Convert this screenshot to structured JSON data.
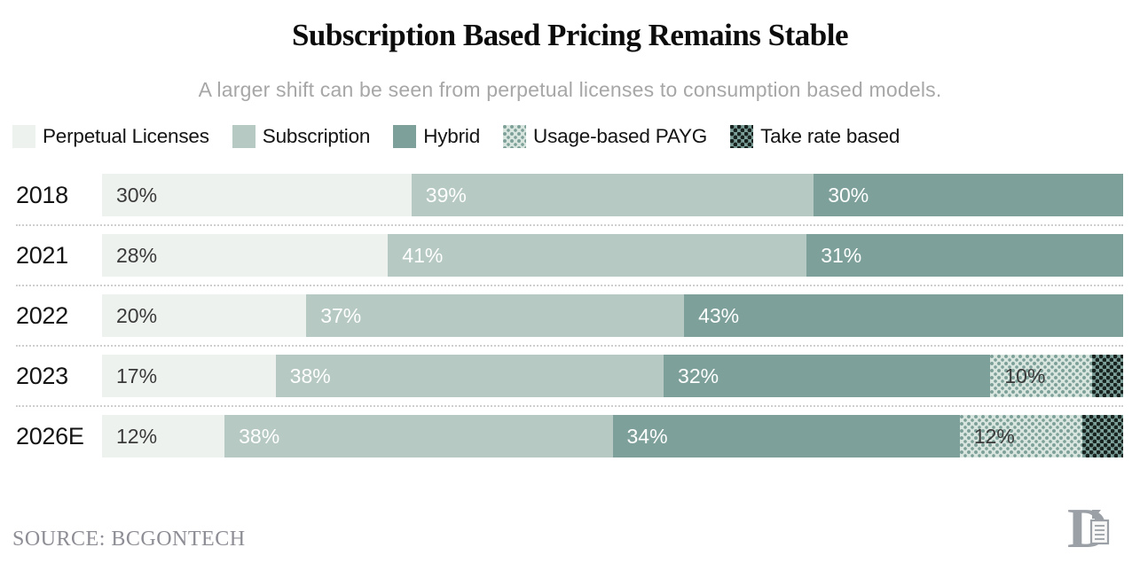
{
  "header": {
    "title": "Subscription Based Pricing Remains Stable",
    "subtitle": "A larger shift can be seen from perpetual licenses to consumption based models."
  },
  "legend": {
    "items": [
      {
        "key": "perpetual",
        "label": "Perpetual Licenses",
        "swatch": "solid",
        "color": "#eef2ef"
      },
      {
        "key": "subscription",
        "label": "Subscription",
        "swatch": "solid",
        "color": "#b6c9c3"
      },
      {
        "key": "hybrid",
        "label": "Hybrid",
        "swatch": "solid",
        "color": "#7da09a"
      },
      {
        "key": "payg",
        "label": "Usage-based PAYG",
        "swatch": "dots-light"
      },
      {
        "key": "take_rate",
        "label": "Take rate based",
        "swatch": "dots-dark"
      }
    ]
  },
  "chart_data": {
    "type": "bar",
    "orientation": "horizontal-stacked",
    "categories": [
      "2018",
      "2021",
      "2022",
      "2023",
      "2026E"
    ],
    "series": [
      {
        "name": "Perpetual Licenses",
        "key": "perpetual",
        "label_color": "dark",
        "show_labels": true,
        "values": [
          30,
          28,
          20,
          17,
          12
        ]
      },
      {
        "name": "Subscription",
        "key": "subscription",
        "label_color": "light",
        "show_labels": true,
        "values": [
          39,
          41,
          37,
          38,
          38
        ]
      },
      {
        "name": "Hybrid",
        "key": "hybrid",
        "label_color": "light",
        "show_labels": true,
        "values": [
          30,
          31,
          43,
          32,
          34
        ]
      },
      {
        "name": "Usage-based PAYG",
        "key": "payg",
        "label_color": "dark",
        "show_labels": true,
        "values": [
          0,
          0,
          0,
          10,
          12
        ]
      },
      {
        "name": "Take rate based",
        "key": "take_rate",
        "label_color": "dark",
        "show_labels": false,
        "values": [
          0,
          0,
          0,
          3,
          4
        ]
      }
    ],
    "value_suffix": "%",
    "ylim": [
      0,
      100
    ],
    "legend_position": "top-left",
    "grid": "dotted-row-dividers",
    "unlabeled_segments_note": "Take rate based segments carry no value labels; values estimated as remainder to 100%."
  },
  "palette": {
    "perpetual": "#eef2ef",
    "subscription": "#b6c9c3",
    "hybrid": "#7da09a",
    "payg_base": "#d9e5df",
    "payg_dot": "#7ca098",
    "take_base": "#7da09a",
    "take_dot": "#18231f",
    "divider": "#cfcfcf",
    "label_dark": "#3a3a3a",
    "label_light": "#ffffff"
  },
  "footer": {
    "source": "SOURCE: BCGONTECH",
    "logo": "ornate-letter-D-with-scroll"
  }
}
